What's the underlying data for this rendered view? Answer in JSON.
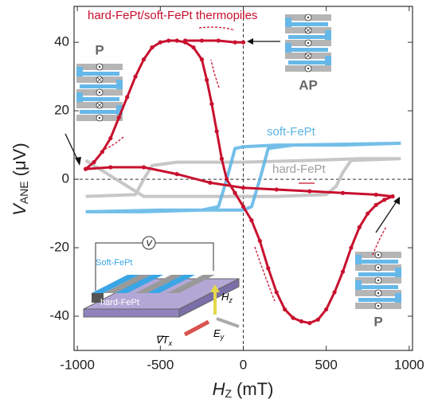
{
  "chart_data": {
    "type": "line",
    "x_label": {
      "text": "H",
      "sub": "Z",
      "unit": "(mT)"
    },
    "y_label": {
      "text": "V",
      "sub": "ANE",
      "unit": "(μV)"
    },
    "xlim": [
      -1020,
      1020
    ],
    "ylim": [
      -50,
      50.5
    ],
    "xticks": [
      -1000,
      -500,
      0,
      500,
      1000
    ],
    "yticks": [
      -40,
      -20,
      0,
      20,
      40
    ],
    "series": [
      {
        "name": "hard-FePt",
        "color": "#bdbdbd",
        "x": [
          950,
          700,
          400,
          0,
          -400,
          -550,
          -600,
          -650,
          -950,
          null,
          -950,
          -600,
          -200,
          200,
          500,
          560,
          600,
          650,
          950
        ],
        "values": [
          6,
          6,
          5.5,
          5,
          5,
          4,
          0,
          -4.5,
          -5,
          null,
          5.5,
          -5,
          -5,
          -5,
          -4.5,
          -2,
          2,
          5.5,
          6
        ]
      },
      {
        "name": "soft-FePt",
        "color": "#5bb4e5",
        "x": [
          950,
          600,
          200,
          0,
          -50,
          -100,
          -150,
          -250,
          -600,
          -950,
          null,
          -950,
          -500,
          0,
          50,
          100,
          150,
          300,
          950
        ],
        "values": [
          10.5,
          10,
          10,
          9.5,
          9,
          0,
          -8,
          -9,
          -9.5,
          -9.5,
          null,
          -9.5,
          -9,
          -9,
          -8,
          0,
          9,
          10,
          10.5
        ]
      },
      {
        "name": "hard-FePt/soft-FePt thermopiles",
        "color": "#c8102e",
        "x": [
          900,
          800,
          600,
          400,
          200,
          0,
          -200,
          -400,
          -600,
          -800,
          -950,
          null,
          -950,
          -900,
          -850,
          -800,
          -750,
          -700,
          -650,
          -600,
          -550,
          -500,
          -450,
          -400,
          -350,
          -300,
          -250,
          -220,
          -190,
          -160,
          -130,
          -100,
          -50,
          0,
          50,
          100,
          150,
          200,
          250,
          300,
          350,
          400,
          450,
          500,
          550,
          600,
          650,
          700,
          750,
          800,
          850,
          900,
          null,
          -350,
          -250,
          -150,
          -50,
          0
        ],
        "values": [
          -5,
          -4.5,
          -4,
          -3.5,
          -3,
          -2.5,
          -1,
          1.5,
          3.5,
          3.5,
          3,
          null,
          3,
          5,
          8,
          12,
          18,
          24,
          30,
          35,
          38.5,
          40,
          40.5,
          40.5,
          40,
          38.5,
          35,
          29,
          22,
          14,
          6,
          0,
          -4,
          -8,
          -12,
          -18,
          -26,
          -33,
          -38,
          -40.5,
          -41.5,
          -42,
          -41,
          -38,
          -33,
          -27,
          -20,
          -14,
          -10,
          -7.5,
          -6,
          -5,
          null,
          40.5,
          40.5,
          40.5,
          40,
          40
        ]
      }
    ],
    "annotations": {
      "thermopiles": "hard-FePt/soft-FePt thermopiles",
      "soft": "soft-FePt",
      "hard": "hard-FePt",
      "p_left": "P",
      "ap": "AP",
      "p_right": "P"
    },
    "inset": {
      "soft": "Soft-FePt",
      "hard": "hard-FePt",
      "v": "V",
      "hz": "H",
      "hz_sub": "z",
      "grad": "∇T",
      "grad_sub": "x",
      "e": "E",
      "e_sub": "y"
    }
  }
}
